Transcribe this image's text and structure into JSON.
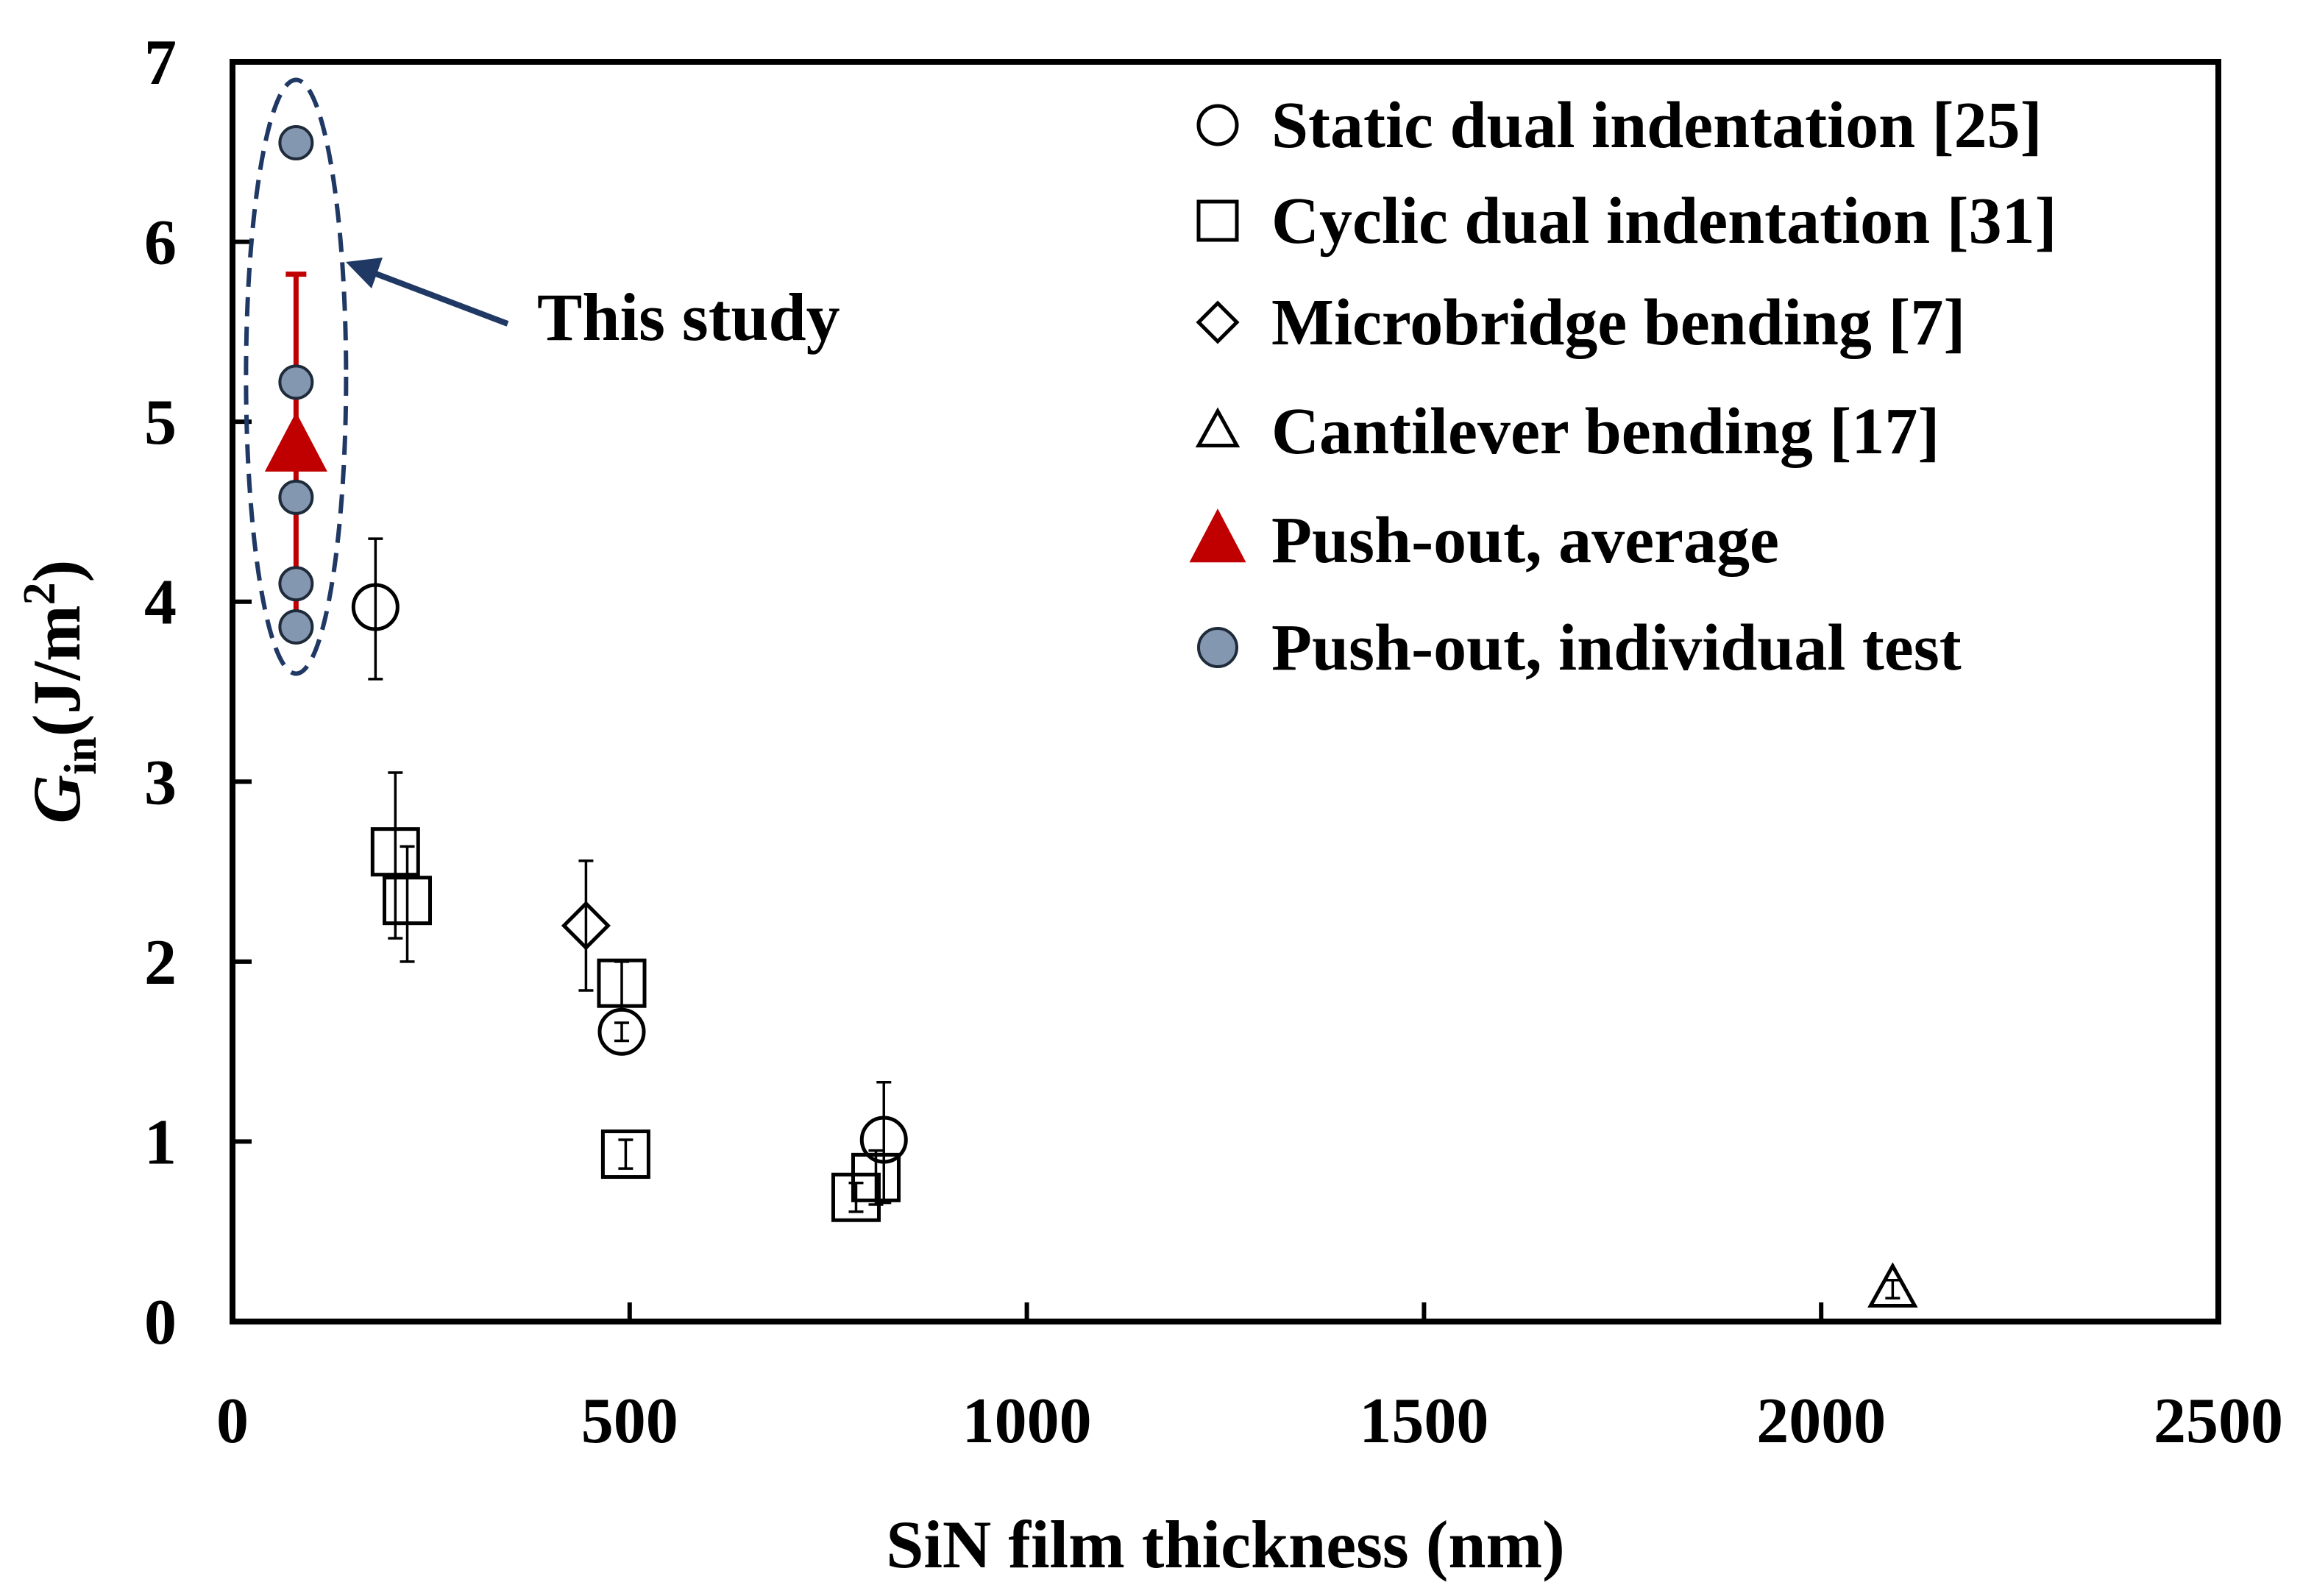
{
  "chart_data": {
    "type": "scatter",
    "title": "",
    "xlabel": "SiN film thickness (nm)",
    "ylabel": {
      "base": "G",
      "sub": "in",
      "unit_open": "(J/m",
      "sup": "2",
      "unit_close": ")"
    },
    "xlim": [
      0,
      2500
    ],
    "ylim": [
      0,
      7
    ],
    "xticks": [
      0,
      500,
      1000,
      1500,
      2000,
      2500
    ],
    "yticks": [
      0,
      1,
      2,
      3,
      4,
      5,
      6,
      7
    ],
    "x_tick_labels": [
      "0",
      "500",
      "1000",
      "1500",
      "2000",
      "2500"
    ],
    "y_tick_labels": [
      "0",
      "1",
      "2",
      "3",
      "4",
      "5",
      "6",
      "7"
    ],
    "grid": false,
    "legend_position": "top-right",
    "annotation": {
      "text": "This study",
      "target": "push-out data at 80 nm",
      "ellipse": {
        "x": 80,
        "y_min": 3.6,
        "y_max": 6.9
      }
    },
    "series": [
      {
        "name": "Static dual indentation [25]",
        "marker": "circle-open",
        "points": [
          {
            "x": 180,
            "y": 3.97,
            "err_low": 0.4,
            "err_high": 0.38
          },
          {
            "x": 490,
            "y": 1.61,
            "err_low": 0.05,
            "err_high": 0.05
          },
          {
            "x": 820,
            "y": 1.01,
            "err_low": 0.35,
            "err_high": 0.32
          }
        ]
      },
      {
        "name": "Cyclic dual indentation [31]",
        "marker": "square-open",
        "points": [
          {
            "x": 205,
            "y": 2.61,
            "err_low": 0.48,
            "err_high": 0.44
          },
          {
            "x": 220,
            "y": 2.34,
            "err_low": 0.34,
            "err_high": 0.3
          },
          {
            "x": 490,
            "y": 1.88,
            "err_low": 0.15,
            "err_high": 0.12
          },
          {
            "x": 495,
            "y": 0.93,
            "err_low": 0.08,
            "err_high": 0.08
          },
          {
            "x": 785,
            "y": 0.69,
            "err_low": 0.08,
            "err_high": 0.08
          },
          {
            "x": 810,
            "y": 0.8,
            "err_low": 0.15,
            "err_high": 0.15
          }
        ]
      },
      {
        "name": "Microbridge bending [7]",
        "marker": "diamond-open",
        "points": [
          {
            "x": 445,
            "y": 2.2,
            "err_low": 0.36,
            "err_high": 0.36
          }
        ]
      },
      {
        "name": "Cantilever bending [17]",
        "marker": "triangle-open",
        "points": [
          {
            "x": 2090,
            "y": 0.18,
            "err_low": 0.05,
            "err_high": 0.05
          }
        ]
      },
      {
        "name": "Push-out, average",
        "marker": "triangle-filled",
        "color": "#c00000",
        "points": [
          {
            "x": 80,
            "y": 4.86,
            "err_low": 0.96,
            "err_high": 0.96
          }
        ]
      },
      {
        "name": "Push-out, individual test",
        "marker": "circle-filled",
        "color": "#8497b0",
        "points": [
          {
            "x": 80,
            "y": 6.55
          },
          {
            "x": 80,
            "y": 5.22
          },
          {
            "x": 80,
            "y": 4.58
          },
          {
            "x": 80,
            "y": 4.1
          },
          {
            "x": 80,
            "y": 3.86
          }
        ]
      }
    ]
  },
  "colors": {
    "axis": "#000000",
    "average": "#c00000",
    "individual": "#8497b0",
    "ellipse": "#1f3864",
    "arrow": "#1f3864"
  }
}
